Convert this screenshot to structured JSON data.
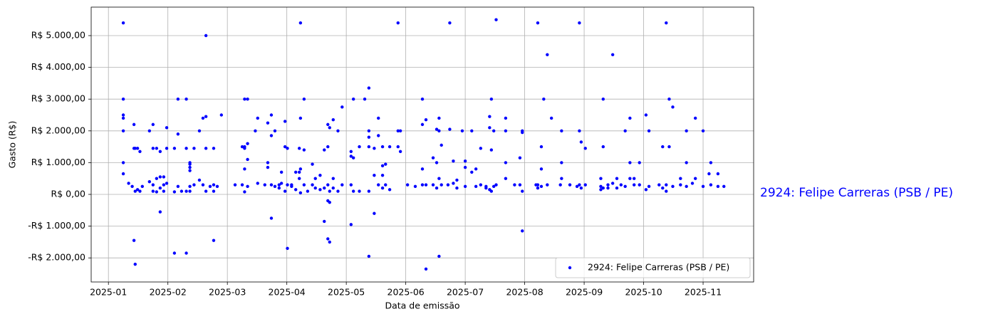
{
  "chart_data": {
    "type": "scatter",
    "x_label": "Data de emissão",
    "y_label": "Gasto (R$)",
    "annotation": "2924: Felipe Carreras (PSB / PE)",
    "grid": true,
    "legend": "lower right",
    "xlim": [
      0.71,
      11.85
    ],
    "ylim": [
      -2758,
      5897
    ],
    "xticks": [
      {
        "value": 1,
        "label": "2025-01"
      },
      {
        "value": 2,
        "label": "2025-02"
      },
      {
        "value": 3,
        "label": "2025-03"
      },
      {
        "value": 4,
        "label": "2025-04"
      },
      {
        "value": 5,
        "label": "2025-05"
      },
      {
        "value": 6,
        "label": "2025-06"
      },
      {
        "value": 7,
        "label": "2025-07"
      },
      {
        "value": 8,
        "label": "2025-08"
      },
      {
        "value": 9,
        "label": "2025-09"
      },
      {
        "value": 10,
        "label": "2025-10"
      },
      {
        "value": 11,
        "label": "2025-11"
      }
    ],
    "yticks": [
      {
        "value": -2000,
        "label": "-R$ 2.000,00"
      },
      {
        "value": -1000,
        "label": "-R$ 1.000,00"
      },
      {
        "value": 0,
        "label": "R$ 0,00"
      },
      {
        "value": 1000,
        "label": "R$ 1.000,00"
      },
      {
        "value": 2000,
        "label": "R$ 2.000,00"
      },
      {
        "value": 3000,
        "label": "R$ 3.000,00"
      },
      {
        "value": 4000,
        "label": "R$ 4.000,00"
      },
      {
        "value": 5000,
        "label": "R$ 5.000,00"
      }
    ],
    "series": [
      {
        "name": "2924: Felipe Carreras (PSB / PE)",
        "color": "#0000ff",
        "x": [
          1.25,
          1.25,
          1.25,
          1.25,
          1.25,
          1.25,
          1.25,
          1.34,
          1.4,
          1.43,
          1.43,
          1.43,
          1.45,
          1.45,
          1.45,
          1.49,
          1.49,
          1.53,
          1.53,
          1.57,
          1.69,
          1.69,
          1.75,
          1.75,
          1.75,
          1.75,
          1.81,
          1.81,
          1.81,
          1.87,
          1.87,
          1.87,
          1.87,
          1.93,
          1.93,
          1.93,
          1.98,
          1.98,
          1.98,
          2.11,
          2.11,
          2.11,
          2.17,
          2.17,
          2.17,
          2.23,
          2.31,
          2.31,
          2.31,
          2.31,
          2.37,
          2.37,
          2.37,
          2.37,
          2.37,
          2.37,
          2.44,
          2.44,
          2.53,
          2.53,
          2.59,
          2.59,
          2.64,
          2.64,
          2.64,
          2.64,
          2.71,
          2.77,
          2.77,
          2.77,
          2.77,
          2.83,
          2.9,
          3.13,
          3.25,
          3.25,
          3.29,
          3.29,
          3.29,
          3.29,
          3.29,
          3.34,
          3.34,
          3.34,
          3.34,
          3.47,
          3.51,
          3.51,
          3.63,
          3.68,
          3.68,
          3.68,
          3.74,
          3.74,
          3.74,
          3.74,
          3.8,
          3.8,
          3.87,
          3.87,
          3.91,
          3.91,
          3.97,
          3.97,
          3.97,
          4.01,
          4.01,
          4.01,
          4.08,
          4.08,
          4.15,
          4.15,
          4.21,
          4.21,
          4.21,
          4.23,
          4.23,
          4.23,
          4.23,
          4.29,
          4.29,
          4.29,
          4.35,
          4.43,
          4.43,
          4.48,
          4.48,
          4.56,
          4.56,
          4.63,
          4.63,
          4.63,
          4.69,
          4.69,
          4.69,
          4.69,
          4.69,
          4.72,
          4.72,
          4.72,
          4.72,
          4.78,
          4.78,
          4.78,
          4.86,
          4.86,
          4.93,
          4.93,
          5.08,
          5.08,
          5.08,
          5.08,
          5.12,
          5.12,
          5.12,
          5.22,
          5.22,
          5.31,
          5.38,
          5.38,
          5.38,
          5.38,
          5.38,
          5.38,
          5.47,
          5.47,
          5.47,
          5.54,
          5.54,
          5.54,
          5.61,
          5.61,
          5.61,
          5.61,
          5.66,
          5.66,
          5.73,
          5.73,
          5.87,
          5.87,
          5.87,
          5.91,
          5.91,
          6.03,
          6.16,
          6.28,
          6.28,
          6.28,
          6.28,
          6.34,
          6.34,
          6.34,
          6.46,
          6.46,
          6.52,
          6.52,
          6.52,
          6.56,
          6.56,
          6.56,
          6.56,
          6.6,
          6.6,
          6.71,
          6.74,
          6.74,
          6.8,
          6.8,
          6.86,
          6.86,
          6.95,
          7.0,
          7.0,
          7.0,
          7.11,
          7.11,
          7.18,
          7.18,
          7.26,
          7.26,
          7.35,
          7.35,
          7.41,
          7.41,
          7.41,
          7.44,
          7.44,
          7.44,
          7.48,
          7.48,
          7.52,
          7.52,
          7.68,
          7.68,
          7.68,
          7.68,
          7.83,
          7.92,
          7.92,
          7.96,
          7.96,
          7.96,
          7.96,
          8.19,
          8.22,
          8.22,
          8.22,
          8.28,
          8.28,
          8.28,
          8.32,
          8.38,
          8.38,
          8.45,
          8.6,
          8.62,
          8.62,
          8.62,
          8.76,
          8.88,
          8.92,
          8.92,
          8.92,
          8.95,
          8.95,
          9.02,
          9.02,
          9.28,
          9.28,
          9.28,
          9.32,
          9.32,
          9.32,
          9.4,
          9.4,
          9.48,
          9.48,
          9.55,
          9.55,
          9.62,
          9.69,
          9.69,
          9.77,
          9.77,
          9.77,
          9.84,
          9.84,
          9.93,
          9.93,
          10.04,
          10.04,
          10.09,
          10.09,
          10.26,
          10.32,
          10.32,
          10.38,
          10.38,
          10.38,
          10.43,
          10.43,
          10.49,
          10.49,
          10.62,
          10.62,
          10.72,
          10.72,
          10.72,
          10.82,
          10.87,
          10.87,
          11.0,
          11.0,
          11.1,
          11.13,
          11.13,
          11.25,
          11.25,
          11.35
        ],
        "values": [
          5400,
          3000,
          2500,
          2400,
          2000,
          1000,
          650,
          350,
          250,
          2200,
          1450,
          -1450,
          1450,
          100,
          -2200,
          1450,
          150,
          1350,
          100,
          250,
          2000,
          400,
          2200,
          1450,
          100,
          300,
          1450,
          500,
          80,
          1350,
          -550,
          550,
          200,
          550,
          300,
          100,
          2100,
          1450,
          350,
          1450,
          80,
          -1850,
          3000,
          1900,
          250,
          100,
          3000,
          1450,
          -1850,
          100,
          950,
          850,
          750,
          250,
          100,
          1000,
          1450,
          300,
          2000,
          450,
          2400,
          300,
          5000,
          2450,
          1450,
          100,
          250,
          1450,
          -1450,
          300,
          100,
          250,
          2500,
          300,
          1500,
          300,
          3000,
          1500,
          1450,
          800,
          80,
          3000,
          1600,
          1100,
          250,
          2000,
          2400,
          350,
          300,
          2250,
          850,
          1000,
          2500,
          1850,
          -750,
          300,
          2000,
          250,
          300,
          200,
          350,
          700,
          2300,
          1500,
          100,
          1450,
          -1700,
          300,
          300,
          250,
          700,
          150,
          1450,
          700,
          500,
          5400,
          2400,
          800,
          50,
          3000,
          1400,
          300,
          100,
          950,
          300,
          500,
          200,
          150,
          600,
          1400,
          -850,
          200,
          2200,
          1500,
          -1400,
          300,
          -200,
          2100,
          -1500,
          -250,
          100,
          2350,
          500,
          200,
          2000,
          100,
          2750,
          300,
          1350,
          1200,
          300,
          -950,
          3000,
          1150,
          100,
          1500,
          100,
          3000,
          3350,
          2000,
          1800,
          1500,
          -1950,
          100,
          1450,
          -600,
          600,
          2400,
          1850,
          300,
          1500,
          900,
          600,
          200,
          950,
          300,
          1500,
          150,
          5400,
          2000,
          1500,
          2000,
          1350,
          300,
          250,
          3000,
          2200,
          800,
          300,
          2350,
          -2350,
          300,
          1150,
          300,
          2050,
          1000,
          200,
          2400,
          2000,
          -1950,
          500,
          1550,
          300,
          300,
          2050,
          5400,
          1050,
          350,
          450,
          200,
          2000,
          1050,
          850,
          250,
          2000,
          700,
          800,
          250,
          1450,
          300,
          200,
          250,
          2100,
          2450,
          150,
          3000,
          1400,
          100,
          2000,
          250,
          5500,
          300,
          2400,
          2000,
          1000,
          500,
          300,
          1150,
          300,
          2000,
          1950,
          -1150,
          100,
          300,
          5400,
          300,
          200,
          1500,
          800,
          250,
          3000,
          4400,
          300,
          2400,
          300,
          2000,
          1000,
          500,
          300,
          250,
          5400,
          2000,
          300,
          1650,
          200,
          1450,
          300,
          250,
          500,
          150,
          3000,
          1500,
          200,
          300,
          200,
          4400,
          350,
          200,
          500,
          300,
          2000,
          250,
          2400,
          1000,
          500,
          300,
          500,
          1000,
          300,
          2500,
          150,
          2000,
          250,
          300,
          1500,
          200,
          5400,
          300,
          100,
          3000,
          1500,
          2750,
          250,
          300,
          500,
          2000,
          1000,
          250,
          350,
          2400,
          500,
          2000,
          250,
          650,
          1000,
          300,
          650,
          250,
          250
        ]
      }
    ]
  }
}
